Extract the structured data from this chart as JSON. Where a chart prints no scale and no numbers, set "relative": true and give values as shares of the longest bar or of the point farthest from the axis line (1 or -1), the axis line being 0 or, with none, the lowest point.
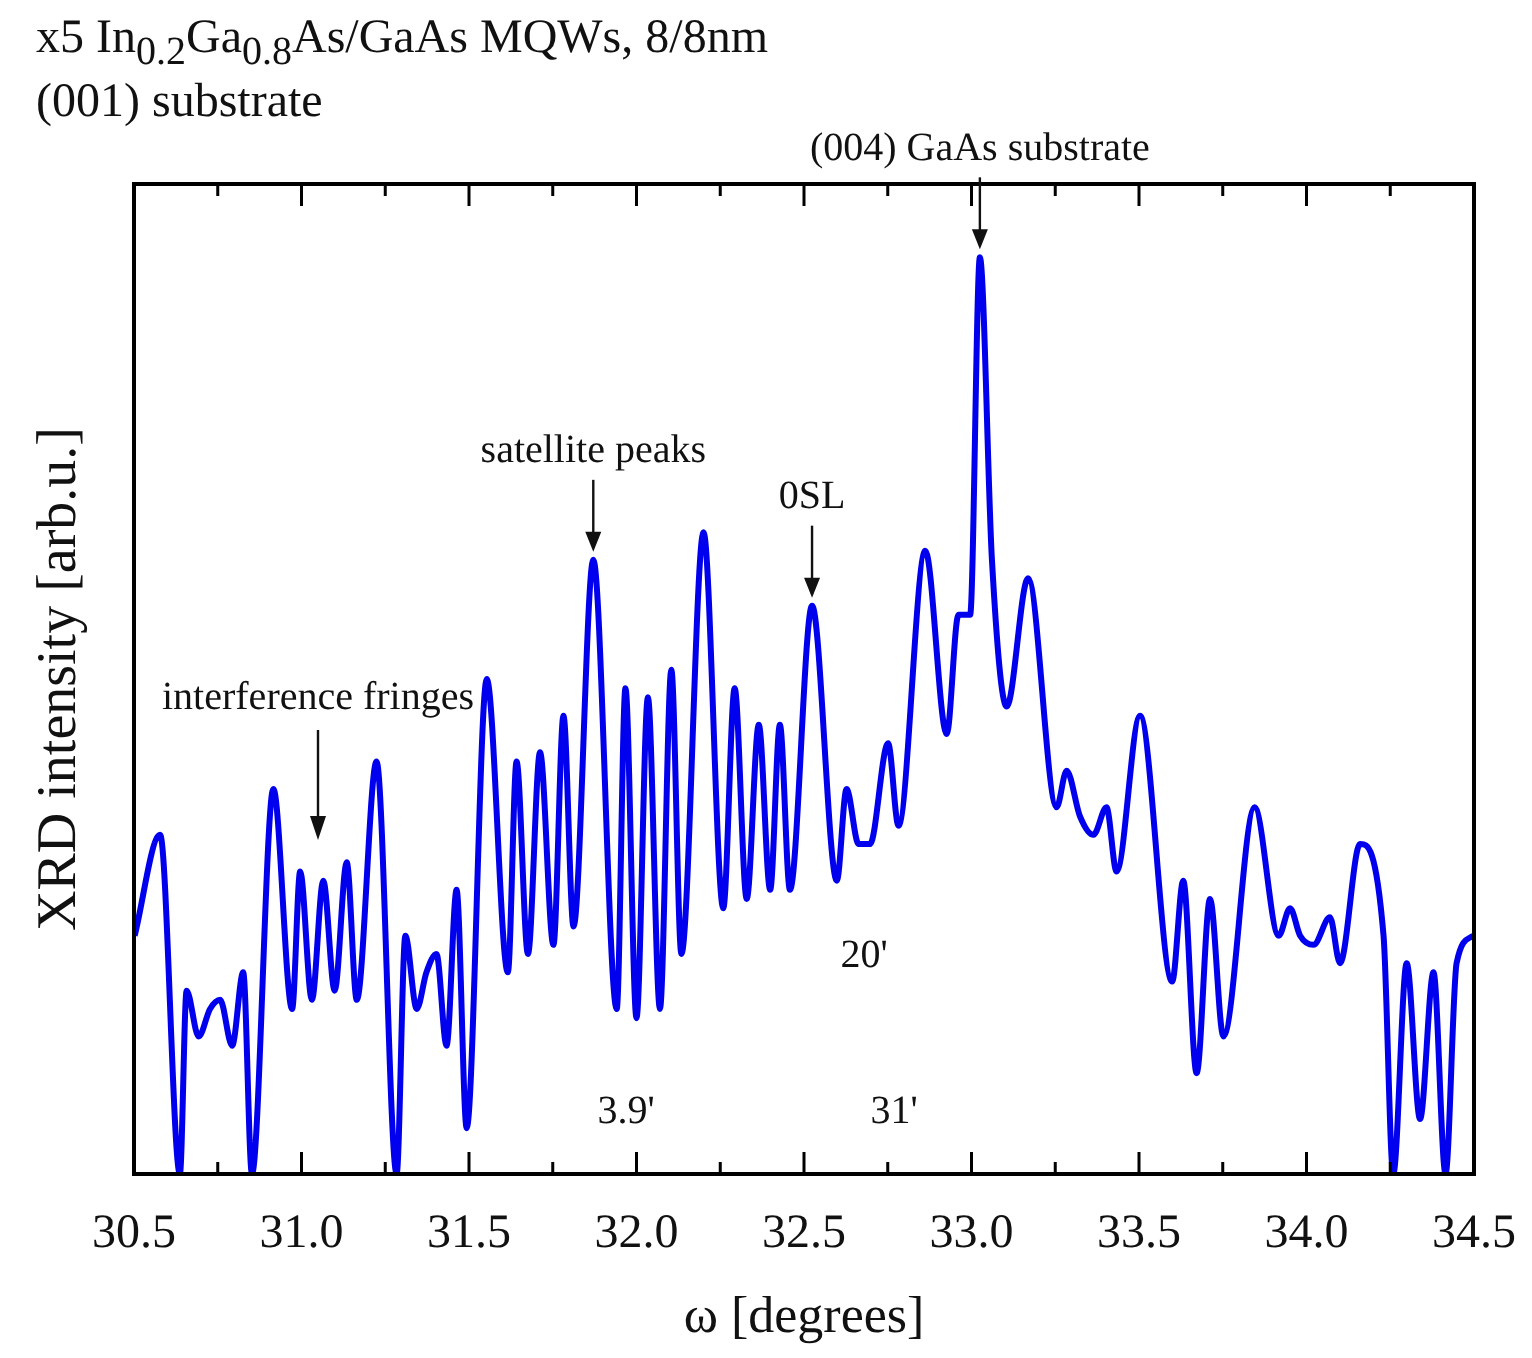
{
  "chart_data": {
    "type": "line",
    "title": "x5 In$_{0.2}$Ga$_{0.8}$As/GaAs MQWs, 8/8nm",
    "subtitle": "(001) substrate",
    "xlabel": "ω [degrees]",
    "ylabel": "XRD intensity [arb.u.]",
    "relative": true,
    "xlim": [
      30.5,
      34.5
    ],
    "xticks": [
      30.5,
      {
        "value": 30.75,
        "label": null
      },
      {
        "value": 31.0,
        "label": "31.0"
      },
      {
        "value": 31.25,
        "label": null
      },
      31.5,
      {
        "value": 31.75,
        "label": null
      },
      {
        "value": 32.0,
        "label": "32.0"
      },
      {
        "value": 32.25,
        "label": null
      },
      32.5,
      {
        "value": 32.75,
        "label": null
      },
      {
        "value": 33.0,
        "label": "33.0"
      },
      {
        "value": 33.25,
        "label": null
      },
      33.5,
      {
        "value": 33.75,
        "label": null
      },
      {
        "value": 34.0,
        "label": "34.0"
      },
      {
        "value": 34.25,
        "label": null
      },
      34.5
    ],
    "series": [
      {
        "color": "#0000ee",
        "x": [
          30.502,
          30.578,
          30.637,
          30.657,
          30.693,
          30.727,
          30.757,
          30.793,
          30.826,
          30.852,
          30.916,
          30.972,
          30.996,
          31.031,
          31.065,
          31.099,
          31.135,
          31.165,
          31.224,
          31.284,
          31.31,
          31.344,
          31.373,
          31.403,
          31.433,
          31.463,
          31.493,
          31.553,
          31.616,
          31.642,
          31.676,
          31.712,
          31.752,
          31.782,
          31.812,
          31.871,
          31.941,
          31.967,
          32.0,
          32.034,
          32.07,
          32.104,
          32.134,
          32.2,
          32.259,
          32.293,
          32.329,
          32.365,
          32.399,
          32.428,
          32.458,
          32.524,
          32.598,
          32.627,
          32.663,
          32.697,
          32.751,
          32.782,
          32.862,
          32.926,
          32.961,
          32.996,
          33.025,
          33.061,
          33.105,
          33.169,
          33.254,
          33.284,
          33.324,
          33.364,
          33.403,
          33.433,
          33.503,
          33.599,
          33.632,
          33.672,
          33.712,
          33.752,
          33.845,
          33.917,
          33.951,
          33.981,
          34.021,
          34.07,
          34.1,
          34.16,
          34.23,
          34.259,
          34.299,
          34.339,
          34.379,
          34.415,
          34.448,
          34.498
        ],
        "values": [
          0.26,
          0.37,
          0,
          0.2,
          0.15,
          0.18,
          0.19,
          0.14,
          0.22,
          0,
          0.42,
          0.18,
          0.33,
          0.19,
          0.32,
          0.2,
          0.34,
          0.19,
          0.45,
          0,
          0.26,
          0.18,
          0.22,
          0.24,
          0.14,
          0.31,
          0.05,
          0.54,
          0.22,
          0.45,
          0.24,
          0.46,
          0.25,
          0.5,
          0.27,
          0.67,
          0.18,
          0.53,
          0.17,
          0.52,
          0.18,
          0.55,
          0.24,
          0.7,
          0.29,
          0.53,
          0.3,
          0.49,
          0.31,
          0.49,
          0.31,
          0.62,
          0.32,
          0.42,
          0.36,
          0.36,
          0.47,
          0.38,
          0.68,
          0.48,
          0.61,
          0.61,
          1,
          0.67,
          0.51,
          0.65,
          0.4,
          0.44,
          0.39,
          0.37,
          0.4,
          0.33,
          0.5,
          0.21,
          0.32,
          0.11,
          0.3,
          0.15,
          0.4,
          0.26,
          0.29,
          0.26,
          0.25,
          0.28,
          0.23,
          0.36,
          0.26,
          0,
          0.23,
          0.06,
          0.22,
          0,
          0.23,
          0.26
        ]
      }
    ],
    "annotations": [
      {
        "text": "(004) GaAs substrate",
        "x": 33.025,
        "y": 1
      },
      {
        "text": "0SL",
        "x": 32.524,
        "y": 0.62
      },
      {
        "text": "satellite peaks",
        "x": 31.871,
        "y": 0.67
      },
      "interference fringes",
      "3.9'",
      "20'",
      "31'"
    ]
  }
}
